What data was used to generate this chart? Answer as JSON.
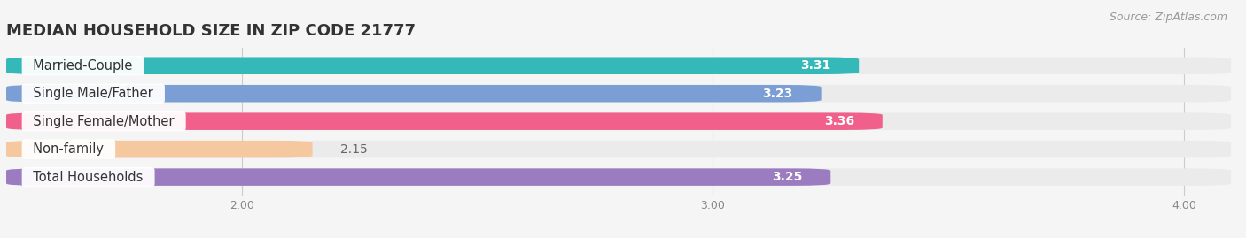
{
  "title": "MEDIAN HOUSEHOLD SIZE IN ZIP CODE 21777",
  "source": "Source: ZipAtlas.com",
  "categories": [
    "Married-Couple",
    "Single Male/Father",
    "Single Female/Mother",
    "Non-family",
    "Total Households"
  ],
  "values": [
    3.31,
    3.23,
    3.36,
    2.15,
    3.25
  ],
  "bar_colors": [
    "#35b8b8",
    "#7b9fd4",
    "#f0608a",
    "#f5c8a0",
    "#9b7cc0"
  ],
  "bar_bg_color": "#ebebeb",
  "xlim": [
    1.5,
    4.1
  ],
  "xticks": [
    2.0,
    3.0,
    4.0
  ],
  "xtick_labels": [
    "2.00",
    "3.00",
    "4.00"
  ],
  "title_fontsize": 13,
  "bar_height": 0.62,
  "value_color_inside": "#ffffff",
  "value_color_outside": "#666666",
  "label_fontsize": 10.5,
  "value_fontsize": 10,
  "source_fontsize": 9,
  "bg_color": "#f5f5f5"
}
